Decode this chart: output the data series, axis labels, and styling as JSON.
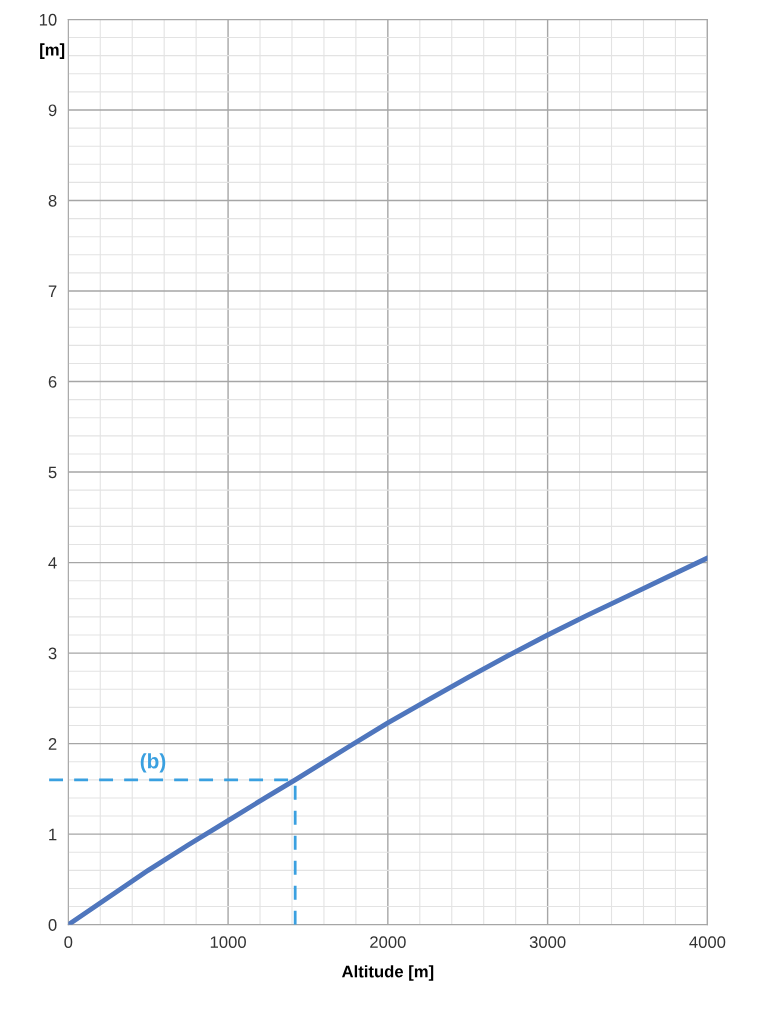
{
  "chart_data": {
    "type": "line",
    "xlabel": "Altitude [m]",
    "ylabel": "[m]",
    "x": [
      0,
      250,
      500,
      750,
      1000,
      1250,
      1420,
      1750,
      2000,
      2250,
      2500,
      2750,
      3000,
      3250,
      3500,
      3750,
      4000
    ],
    "series": [
      {
        "color": "#4f76bd",
        "values": [
          0,
          0.3,
          0.6,
          0.88,
          1.15,
          1.42,
          1.6,
          1.96,
          2.23,
          2.48,
          2.73,
          2.97,
          3.2,
          3.42,
          3.63,
          3.84,
          4.05
        ]
      }
    ],
    "xlim": [
      0,
      4000
    ],
    "ylim": [
      0,
      10
    ],
    "xticks": [
      0,
      1000,
      2000,
      3000,
      4000
    ],
    "yticks": [
      0,
      1,
      2,
      3,
      4,
      5,
      6,
      7,
      8,
      9,
      10
    ],
    "grid": true,
    "marker": "none",
    "line_style": "solid",
    "ref_lines": [
      {
        "axis": "y",
        "value": 1.6,
        "label": "(b)",
        "color": "#3aa0e0",
        "line_style": "dashed"
      },
      {
        "axis": "x",
        "value": 1420,
        "label": null,
        "color": "#3aa0e0",
        "line_style": "dashed"
      }
    ]
  }
}
